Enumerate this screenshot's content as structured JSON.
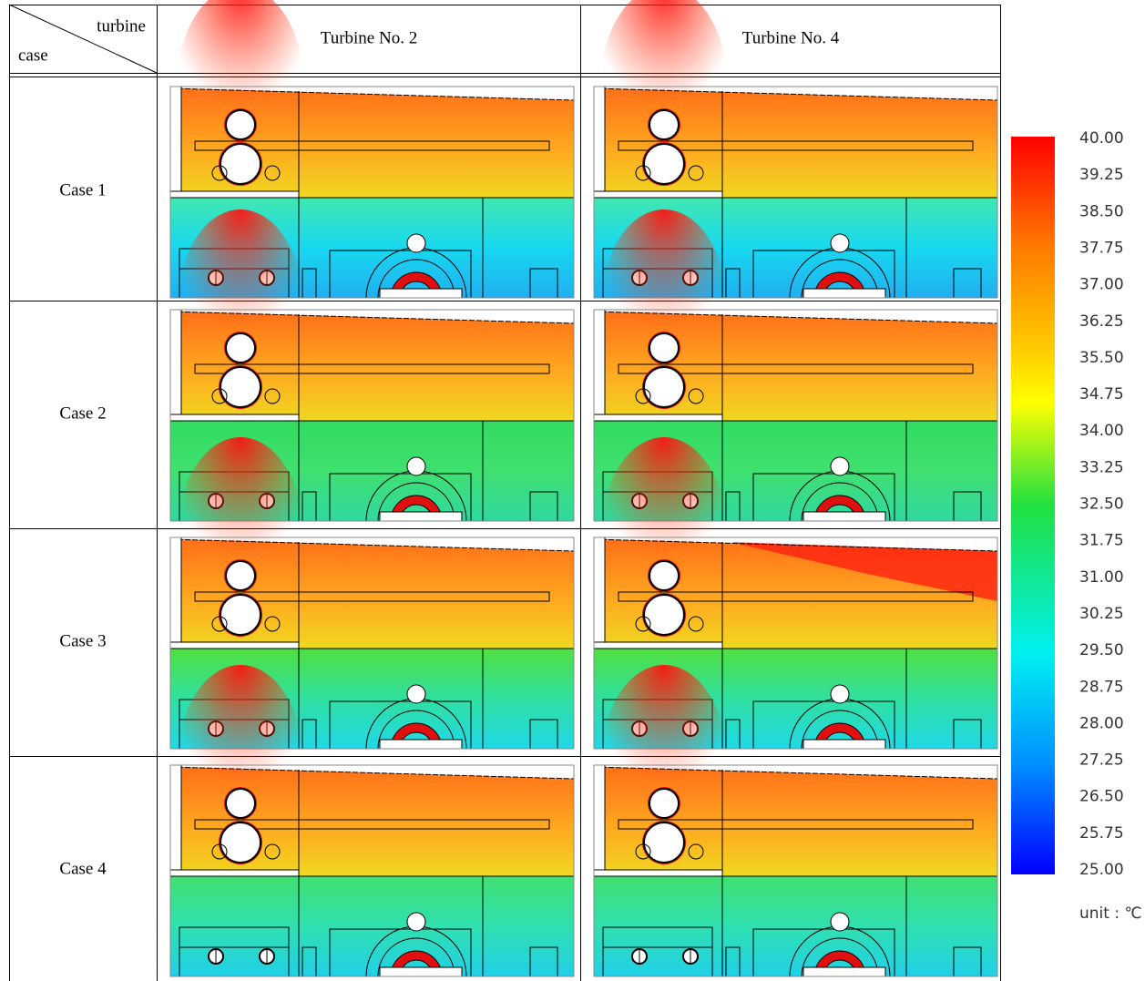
{
  "table": {
    "corner": {
      "top": "turbine",
      "bottom": "case"
    },
    "columns": [
      "Turbine No. 2",
      "Turbine No. 4"
    ],
    "rows": [
      "Case 1",
      "Case 2",
      "Case 3",
      "Case 4"
    ]
  },
  "legend": {
    "ticks": [
      "40.00",
      "39.25",
      "38.50",
      "37.75",
      "37.00",
      "36.25",
      "35.50",
      "34.75",
      "34.00",
      "33.25",
      "32.50",
      "31.75",
      "31.00",
      "30.25",
      "29.50",
      "28.75",
      "28.00",
      "27.25",
      "26.50",
      "25.75",
      "25.00"
    ],
    "unit": "unit : ℃"
  }
}
